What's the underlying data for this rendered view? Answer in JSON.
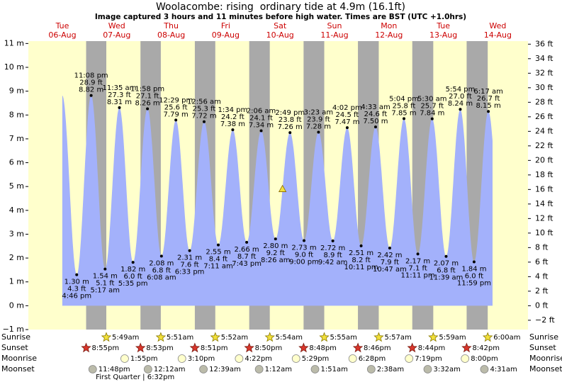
{
  "chart_data": {
    "type": "tide",
    "title": "Woolacombe: rising  ordinary tide at 4.9m (16.1ft)",
    "subtitle": "Image captured 3 hours and 11 minutes before high water. Times are BST (UTC +1.0hrs)",
    "ylim": [
      -1,
      11.1
    ],
    "yticks": [
      {
        "value": -1,
        "label": "−1 m"
      },
      {
        "value": 0,
        "label": "0 m"
      },
      {
        "value": 1,
        "label": "1 m"
      },
      {
        "value": 2,
        "label": "2 m"
      },
      {
        "value": 3,
        "label": "3 m"
      },
      {
        "value": 4,
        "label": "4 m"
      },
      {
        "value": 5,
        "label": "5 m"
      },
      {
        "value": 6,
        "label": "6 m"
      },
      {
        "value": 7,
        "label": "7 m"
      },
      {
        "value": 8,
        "label": "8 m"
      },
      {
        "value": 9,
        "label": "9 m"
      },
      {
        "value": 10,
        "label": "10 m"
      },
      {
        "value": 11,
        "label": "11 m"
      }
    ],
    "y2lim": [
      -3.28,
      36.42
    ],
    "y2ticks": [
      {
        "value": -2,
        "label": "−2 ft"
      },
      {
        "value": 0,
        "label": "0 ft"
      },
      {
        "value": 2,
        "label": "2 ft"
      },
      {
        "value": 4,
        "label": "4 ft"
      },
      {
        "value": 6,
        "label": "6 ft"
      },
      {
        "value": 8,
        "label": "8 ft"
      },
      {
        "value": 10,
        "label": "10 ft"
      },
      {
        "value": 12,
        "label": "12 ft"
      },
      {
        "value": 14,
        "label": "14 ft"
      },
      {
        "value": 16,
        "label": "16 ft"
      },
      {
        "value": 18,
        "label": "18 ft"
      },
      {
        "value": 20,
        "label": "20 ft"
      },
      {
        "value": 22,
        "label": "22 ft"
      },
      {
        "value": 24,
        "label": "24 ft"
      },
      {
        "value": 26,
        "label": "26 ft"
      },
      {
        "value": 28,
        "label": "28 ft"
      },
      {
        "value": 30,
        "label": "30 ft"
      },
      {
        "value": 32,
        "label": "32 ft"
      },
      {
        "value": 34,
        "label": "34 ft"
      },
      {
        "value": 36,
        "label": "36 ft"
      }
    ],
    "tide_color": "#a3b1fb",
    "night_color": "#a9a9a9",
    "day_color": "#ffffcc",
    "now_height": 4.9,
    "event_rows": [
      "Sunrise",
      "Sunset",
      "Moonrise",
      "Moonset"
    ],
    "days": [
      {
        "weekday": "Tue",
        "date": "06-Aug",
        "sunset": "8:55pm",
        "moonset": "11:48pm",
        "tides": [
          {
            "time": "4:46 pm",
            "height": 1.3,
            "height_label": "1.30 m",
            "ft_label": "4.3 ft"
          },
          {
            "time": "11:08 pm",
            "height": 8.82,
            "height_label": "8.82 m",
            "ft_label": "28.9 ft"
          }
        ]
      },
      {
        "weekday": "Wed",
        "date": "07-Aug",
        "sunrise": "5:49am",
        "sunset": "8:53pm",
        "moonrise": "1:55pm",
        "moon_phase": "First Quarter | 6:32pm",
        "tides": [
          {
            "time": "5:17 am",
            "height": 1.54,
            "height_label": "1.54 m",
            "ft_label": "5.1 ft"
          },
          {
            "time": "11:35 am",
            "height": 8.31,
            "height_label": "8.31 m",
            "ft_label": "27.3 ft"
          },
          {
            "time": "5:35 pm",
            "height": 1.82,
            "height_label": "1.82 m",
            "ft_label": "6.0 ft"
          },
          {
            "time": "11:58 pm",
            "height": 8.26,
            "height_label": "8.26 m",
            "ft_label": "27.1 ft"
          }
        ]
      },
      {
        "weekday": "Thu",
        "date": "08-Aug",
        "sunrise": "5:51am",
        "sunset": "8:51pm",
        "moonrise": "3:10pm",
        "moonset": "12:12am",
        "tides": [
          {
            "time": "6:08 am",
            "height": 2.08,
            "height_label": "2.08 m",
            "ft_label": "6.8 ft"
          },
          {
            "time": "12:29 pm",
            "height": 7.79,
            "height_label": "7.79 m",
            "ft_label": "25.6 ft"
          },
          {
            "time": "6:33 pm",
            "height": 2.31,
            "height_label": "2.31 m",
            "ft_label": "7.6 ft"
          }
        ]
      },
      {
        "weekday": "Fri",
        "date": "09-Aug",
        "sunrise": "5:52am",
        "sunset": "8:50pm",
        "moonrise": "4:22pm",
        "moonset": "12:39am",
        "tides": [
          {
            "time": "12:56 am",
            "height": 7.72,
            "height_label": "7.72 m",
            "ft_label": "25.3 ft"
          },
          {
            "time": "7:11 am",
            "height": 2.55,
            "height_label": "2.55 m",
            "ft_label": "8.4 ft"
          },
          {
            "time": "1:34 pm",
            "height": 7.38,
            "height_label": "7.38 m",
            "ft_label": "24.2 ft"
          },
          {
            "time": "7:43 pm",
            "height": 2.66,
            "height_label": "2.66 m",
            "ft_label": "8.7 ft"
          }
        ]
      },
      {
        "weekday": "Sat",
        "date": "10-Aug",
        "sunrise": "5:54am",
        "sunset": "8:48pm",
        "moonrise": "5:29pm",
        "moonset": "1:12am",
        "tides": [
          {
            "time": "2:06 am",
            "height": 7.34,
            "height_label": "7.34 m",
            "ft_label": "24.1 ft"
          },
          {
            "time": "8:26 am",
            "height": 2.8,
            "height_label": "2.80 m",
            "ft_label": "9.2 ft"
          },
          {
            "time": "2:49 pm",
            "height": 7.26,
            "height_label": "7.26 m",
            "ft_label": "23.8 ft"
          },
          {
            "time": "9:00 pm",
            "height": 2.73,
            "height_label": "2.73 m",
            "ft_label": "9.0 ft"
          }
        ]
      },
      {
        "weekday": "Sun",
        "date": "11-Aug",
        "sunrise": "5:55am",
        "sunset": "8:46pm",
        "moonrise": "6:28pm",
        "moonset": "1:51am",
        "tides": [
          {
            "time": "3:23 am",
            "height": 7.28,
            "height_label": "7.28 m",
            "ft_label": "23.9 ft"
          },
          {
            "time": "9:42 am",
            "height": 2.72,
            "height_label": "2.72 m",
            "ft_label": "8.9 ft"
          },
          {
            "time": "4:02 pm",
            "height": 7.47,
            "height_label": "7.47 m",
            "ft_label": "24.5 ft"
          },
          {
            "time": "10:11 pm",
            "height": 2.51,
            "height_label": "2.51 m",
            "ft_label": "8.2 ft"
          }
        ]
      },
      {
        "weekday": "Mon",
        "date": "12-Aug",
        "sunrise": "5:57am",
        "sunset": "8:44pm",
        "moonrise": "7:19pm",
        "moonset": "2:38am",
        "tides": [
          {
            "time": "4:33 am",
            "height": 7.5,
            "height_label": "7.50 m",
            "ft_label": "24.6 ft"
          },
          {
            "time": "10:47 am",
            "height": 2.42,
            "height_label": "2.42 m",
            "ft_label": "7.9 ft"
          },
          {
            "time": "5:04 pm",
            "height": 7.85,
            "height_label": "7.85 m",
            "ft_label": "25.8 ft"
          },
          {
            "time": "11:11 pm",
            "height": 2.17,
            "height_label": "2.17 m",
            "ft_label": "7.1 ft"
          }
        ]
      },
      {
        "weekday": "Tue",
        "date": "13-Aug",
        "sunrise": "5:59am",
        "sunset": "8:42pm",
        "moonrise": "8:00pm",
        "moonset": "3:32am",
        "tides": [
          {
            "time": "5:30 am",
            "height": 7.84,
            "height_label": "7.84 m",
            "ft_label": "25.7 ft"
          },
          {
            "time": "11:39 am",
            "height": 2.07,
            "height_label": "2.07 m",
            "ft_label": "6.8 ft"
          },
          {
            "time": "5:54 pm",
            "height": 8.24,
            "height_label": "8.24 m",
            "ft_label": "27.0 ft"
          },
          {
            "time": "11:59 pm",
            "height": 1.84,
            "height_label": "1.84 m",
            "ft_label": "6.0 ft"
          }
        ]
      },
      {
        "weekday": "Wed",
        "date": "14-Aug",
        "sunrise": "6:00am",
        "moonset": "4:31am",
        "tides": [
          {
            "time": "6:17 am",
            "height": 8.15,
            "height_label": "8.15 m",
            "ft_label": "26.7 ft"
          }
        ]
      }
    ]
  }
}
